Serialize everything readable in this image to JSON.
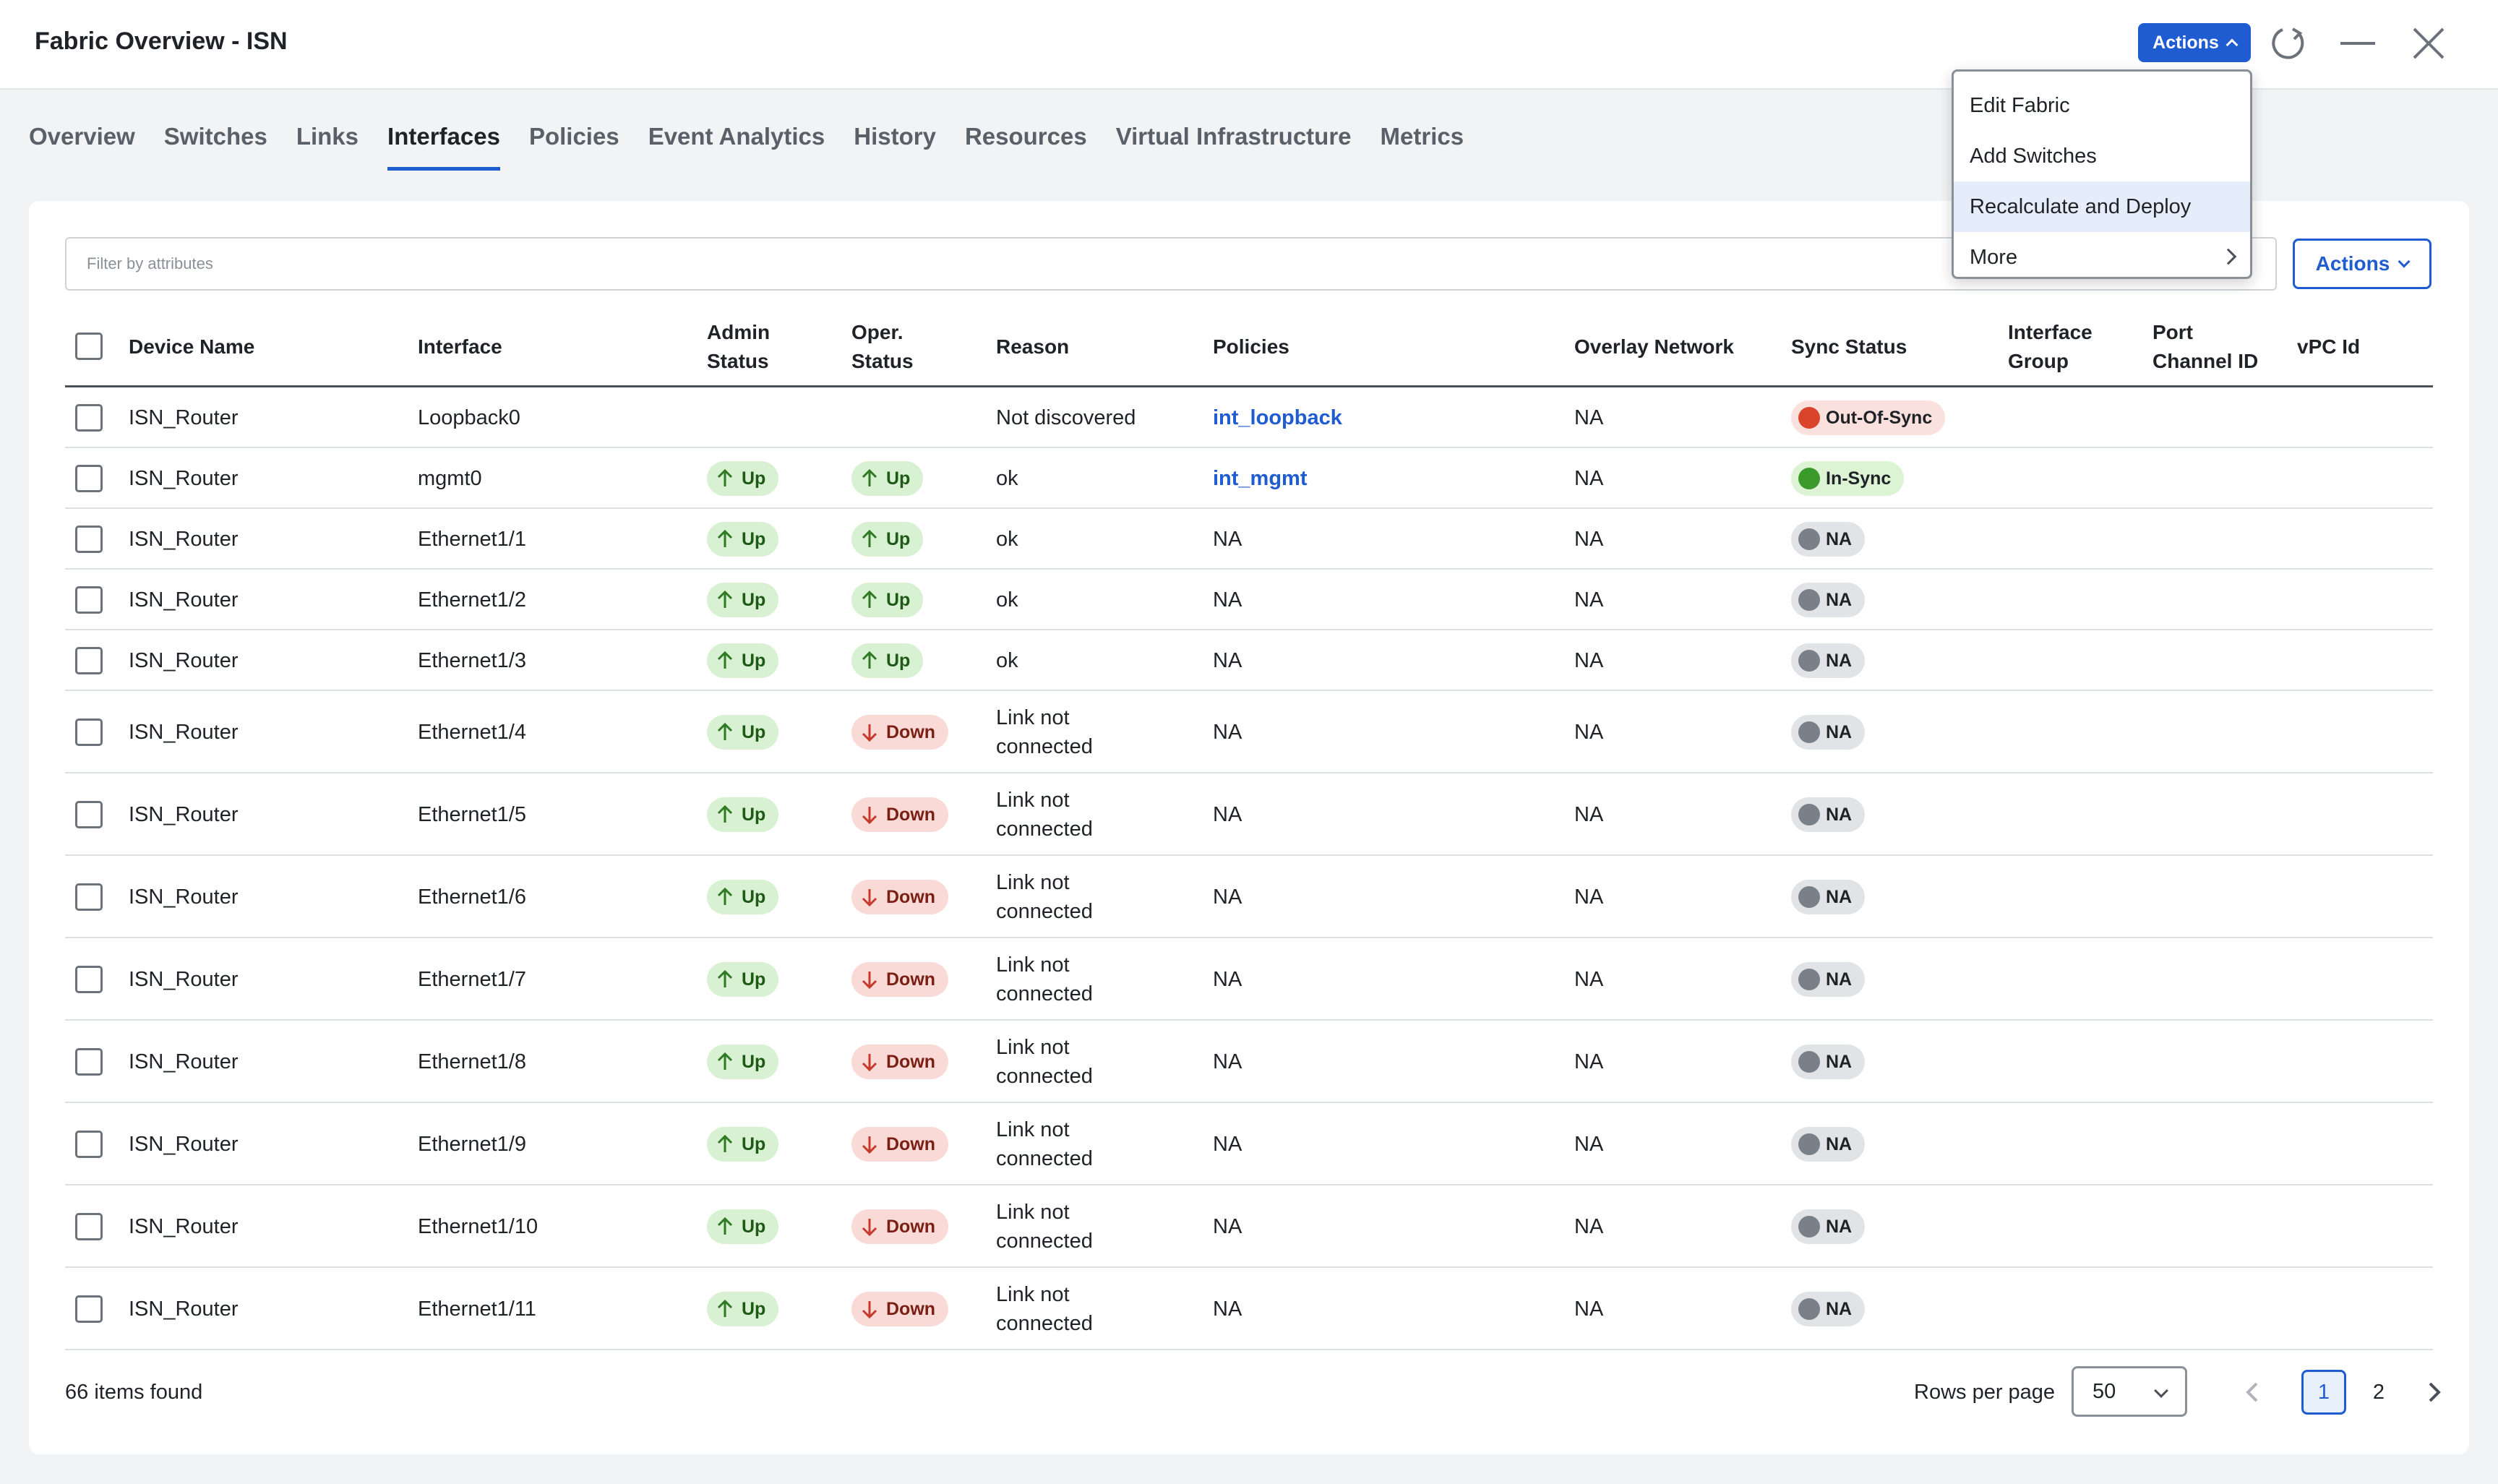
{
  "header": {
    "title": "Fabric Overview - ISN",
    "actions_label": "Actions"
  },
  "tabs": [
    {
      "label": "Overview"
    },
    {
      "label": "Switches"
    },
    {
      "label": "Links"
    },
    {
      "label": "Interfaces",
      "active": true
    },
    {
      "label": "Policies"
    },
    {
      "label": "Event Analytics"
    },
    {
      "label": "History"
    },
    {
      "label": "Resources"
    },
    {
      "label": "Virtual Infrastructure"
    },
    {
      "label": "Metrics"
    }
  ],
  "filter": {
    "placeholder": "Filter by attributes"
  },
  "panel": {
    "actions_label": "Actions"
  },
  "dropdown": {
    "items": [
      {
        "label": "Edit Fabric"
      },
      {
        "label": "Add Switches"
      },
      {
        "label": "Recalculate and Deploy",
        "highlighted": true
      },
      {
        "label": "More",
        "submenu": true
      }
    ]
  },
  "table": {
    "columns": {
      "device_name": "Device Name",
      "interface": "Interface",
      "admin_status": [
        "Admin",
        "Status"
      ],
      "oper_status": [
        "Oper.",
        "Status"
      ],
      "reason": "Reason",
      "policies": "Policies",
      "overlay_network": "Overlay Network",
      "sync_status": "Sync Status",
      "interface_group": [
        "Interface",
        "Group"
      ],
      "port_channel_id": [
        "Port",
        "Channel ID"
      ],
      "vpc_id": "vPC Id"
    },
    "rows": [
      {
        "device": "ISN_Router",
        "interface": "Loopback0",
        "admin": "",
        "oper": "",
        "reason": "Not discovered",
        "policy": "int_loopback",
        "policy_link": true,
        "overlay": "NA",
        "sync": "Out-Of-Sync",
        "sync_type": "oos"
      },
      {
        "device": "ISN_Router",
        "interface": "mgmt0",
        "admin": "Up",
        "oper": "Up",
        "reason": "ok",
        "policy": "int_mgmt",
        "policy_link": true,
        "overlay": "NA",
        "sync": "In-Sync",
        "sync_type": "in"
      },
      {
        "device": "ISN_Router",
        "interface": "Ethernet1/1",
        "admin": "Up",
        "oper": "Up",
        "reason": "ok",
        "policy": "NA",
        "overlay": "NA",
        "sync": "NA",
        "sync_type": "na"
      },
      {
        "device": "ISN_Router",
        "interface": "Ethernet1/2",
        "admin": "Up",
        "oper": "Up",
        "reason": "ok",
        "policy": "NA",
        "overlay": "NA",
        "sync": "NA",
        "sync_type": "na"
      },
      {
        "device": "ISN_Router",
        "interface": "Ethernet1/3",
        "admin": "Up",
        "oper": "Up",
        "reason": "ok",
        "policy": "NA",
        "overlay": "NA",
        "sync": "NA",
        "sync_type": "na"
      },
      {
        "device": "ISN_Router",
        "interface": "Ethernet1/4",
        "admin": "Up",
        "oper": "Down",
        "reason": [
          "Link not",
          "connected"
        ],
        "policy": "NA",
        "overlay": "NA",
        "sync": "NA",
        "sync_type": "na"
      },
      {
        "device": "ISN_Router",
        "interface": "Ethernet1/5",
        "admin": "Up",
        "oper": "Down",
        "reason": [
          "Link not",
          "connected"
        ],
        "policy": "NA",
        "overlay": "NA",
        "sync": "NA",
        "sync_type": "na"
      },
      {
        "device": "ISN_Router",
        "interface": "Ethernet1/6",
        "admin": "Up",
        "oper": "Down",
        "reason": [
          "Link not",
          "connected"
        ],
        "policy": "NA",
        "overlay": "NA",
        "sync": "NA",
        "sync_type": "na"
      },
      {
        "device": "ISN_Router",
        "interface": "Ethernet1/7",
        "admin": "Up",
        "oper": "Down",
        "reason": [
          "Link not",
          "connected"
        ],
        "policy": "NA",
        "overlay": "NA",
        "sync": "NA",
        "sync_type": "na"
      },
      {
        "device": "ISN_Router",
        "interface": "Ethernet1/8",
        "admin": "Up",
        "oper": "Down",
        "reason": [
          "Link not",
          "connected"
        ],
        "policy": "NA",
        "overlay": "NA",
        "sync": "NA",
        "sync_type": "na"
      },
      {
        "device": "ISN_Router",
        "interface": "Ethernet1/9",
        "admin": "Up",
        "oper": "Down",
        "reason": [
          "Link not",
          "connected"
        ],
        "policy": "NA",
        "overlay": "NA",
        "sync": "NA",
        "sync_type": "na"
      },
      {
        "device": "ISN_Router",
        "interface": "Ethernet1/10",
        "admin": "Up",
        "oper": "Down",
        "reason": [
          "Link not",
          "connected"
        ],
        "policy": "NA",
        "overlay": "NA",
        "sync": "NA",
        "sync_type": "na"
      },
      {
        "device": "ISN_Router",
        "interface": "Ethernet1/11",
        "admin": "Up",
        "oper": "Down",
        "reason": [
          "Link not",
          "connected"
        ],
        "policy": "NA",
        "overlay": "NA",
        "sync": "NA",
        "sync_type": "na"
      }
    ]
  },
  "footer": {
    "items_found": "66 items found",
    "rows_per_page_label": "Rows per page",
    "rows_per_page_value": "50",
    "pages": [
      "1",
      "2"
    ],
    "current_page": "1"
  },
  "colors": {
    "accent": "#1f5bd1",
    "up_bg": "#d8f1d2",
    "down_bg": "#fadad6",
    "oos_dot": "#d9442b",
    "insync_dot": "#3a9a2a",
    "na_dot": "#7a8088"
  }
}
